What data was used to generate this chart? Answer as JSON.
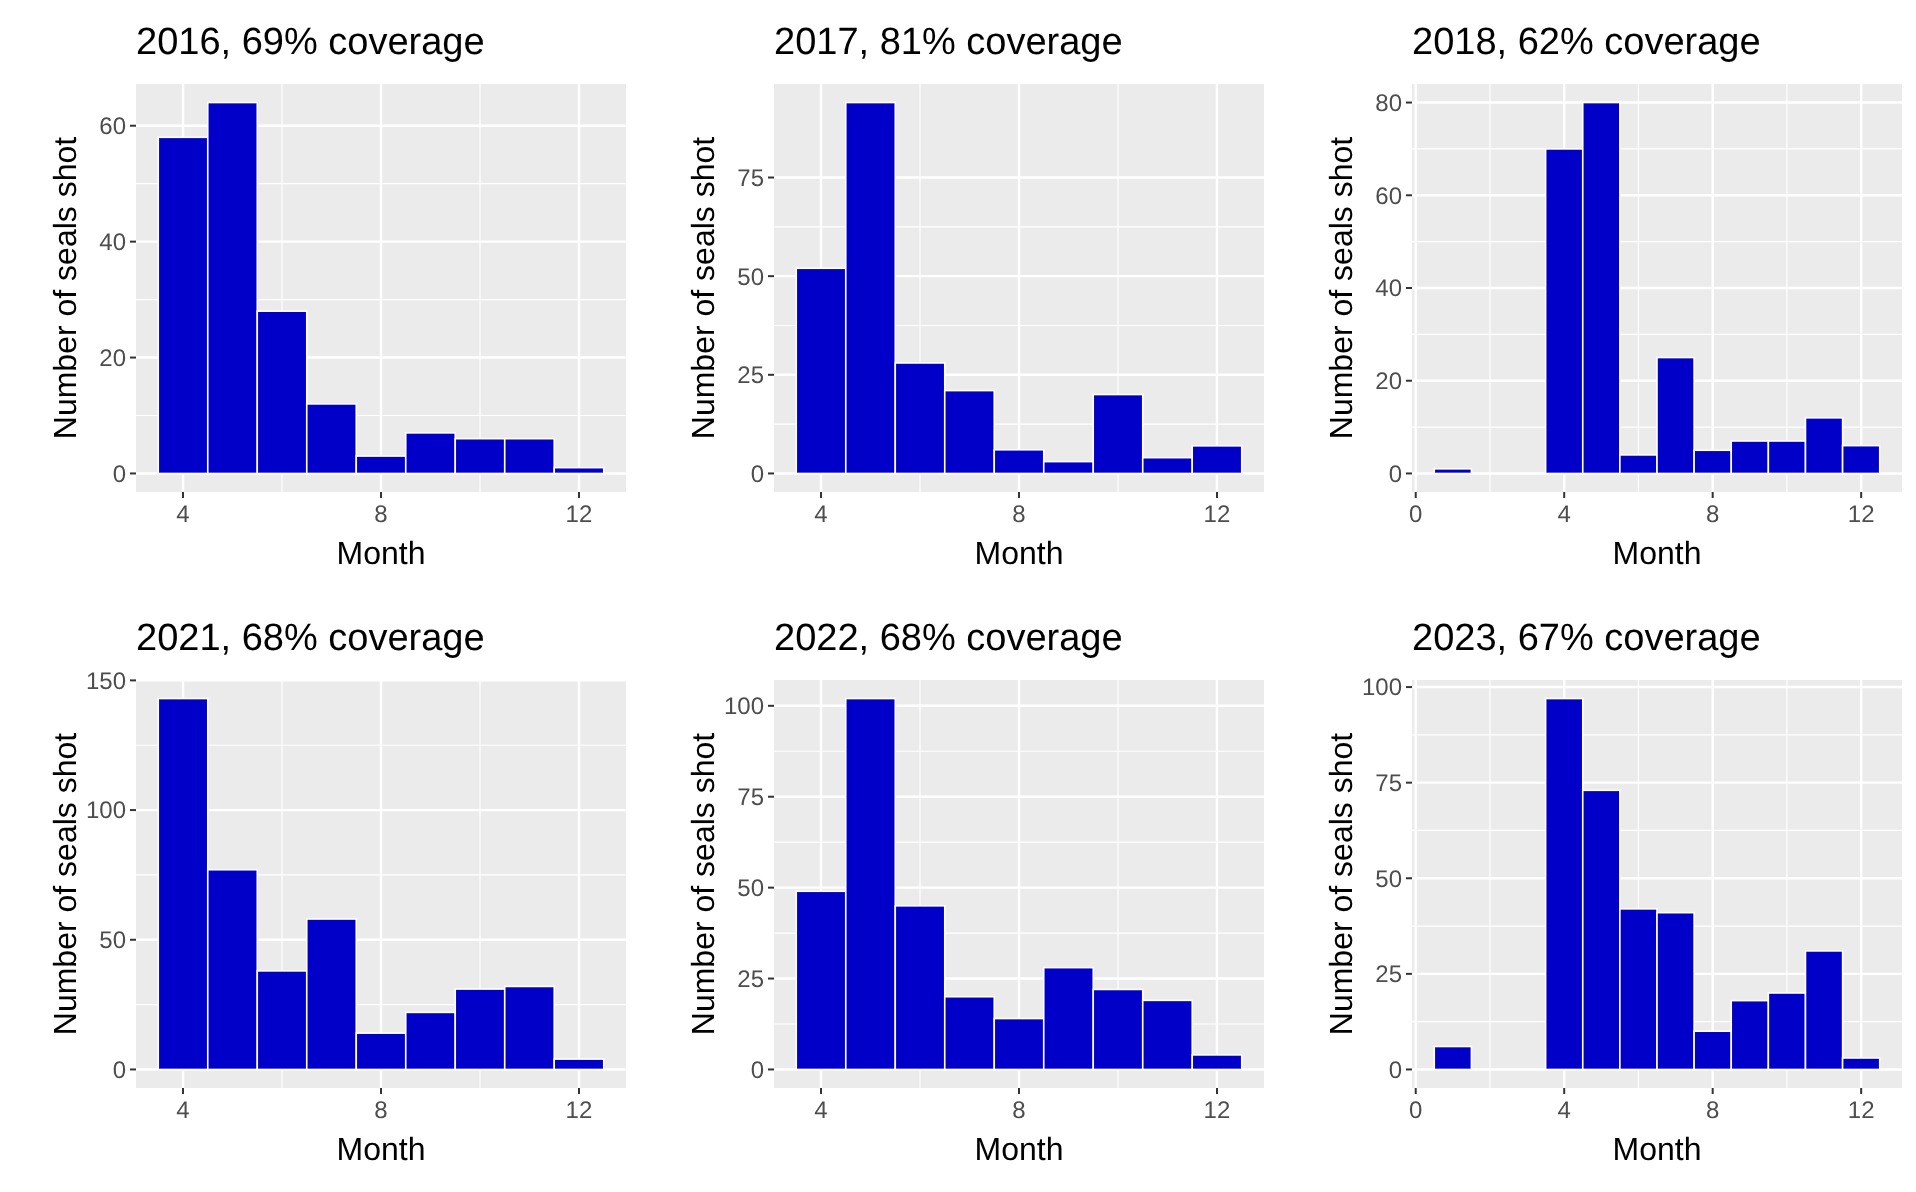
{
  "chart_data": [
    {
      "type": "histogram",
      "title": "2016, 69% coverage",
      "xlabel": "Month",
      "ylabel": "Number of seals shot",
      "color": "#0000c8",
      "grid": true,
      "bins": [
        3.5,
        4.5,
        5.5,
        6.5,
        7.5,
        8.5,
        9.5,
        10.5,
        11.5,
        12.5
      ],
      "values": [
        58,
        64,
        28,
        12,
        3,
        7,
        6,
        6,
        1
      ],
      "xlim": [
        3.05,
        12.95
      ],
      "xticks": [
        4,
        8,
        12
      ],
      "ylim": [
        -3.2,
        67.2
      ],
      "yticks": [
        0,
        20,
        40,
        60
      ]
    },
    {
      "type": "histogram",
      "title": "2017, 81% coverage",
      "xlabel": "Month",
      "ylabel": "Number of seals shot",
      "color": "#0000c8",
      "grid": true,
      "bins": [
        3.5,
        4.5,
        5.5,
        6.5,
        7.5,
        8.5,
        9.5,
        10.5,
        11.5,
        12.5
      ],
      "values": [
        52,
        94,
        28,
        21,
        6,
        3,
        20,
        4,
        7
      ],
      "xlim": [
        3.05,
        12.95
      ],
      "xticks": [
        4,
        8,
        12
      ],
      "ylim": [
        -4.7,
        98.7
      ],
      "yticks": [
        0,
        25,
        50,
        75
      ]
    },
    {
      "type": "histogram",
      "title": "2018, 62% coverage",
      "xlabel": "Month",
      "ylabel": "Number of seals shot",
      "color": "#0000c8",
      "grid": true,
      "bins": [
        0.5,
        1.5,
        2.5,
        3.5,
        4.5,
        5.5,
        6.5,
        7.5,
        8.5,
        9.5,
        10.5,
        11.5,
        12.5
      ],
      "values": [
        1,
        0,
        0,
        70,
        80,
        4,
        25,
        5,
        7,
        7,
        12,
        6
      ],
      "xlim": [
        -0.1,
        13.1
      ],
      "xticks": [
        0,
        4,
        8,
        12
      ],
      "ylim": [
        -4,
        84
      ],
      "yticks": [
        0,
        20,
        40,
        60,
        80
      ]
    },
    {
      "type": "histogram",
      "title": "2021, 68% coverage",
      "xlabel": "Month",
      "ylabel": "Number of seals shot",
      "color": "#0000c8",
      "grid": true,
      "bins": [
        3.5,
        4.5,
        5.5,
        6.5,
        7.5,
        8.5,
        9.5,
        10.5,
        11.5,
        12.5
      ],
      "values": [
        143,
        77,
        38,
        58,
        14,
        22,
        31,
        32,
        4
      ],
      "xlim": [
        3.05,
        12.95
      ],
      "xticks": [
        4,
        8,
        12
      ],
      "ylim": [
        -7.15,
        150.15
      ],
      "yticks": [
        0,
        50,
        100,
        150
      ]
    },
    {
      "type": "histogram",
      "title": "2022, 68% coverage",
      "xlabel": "Month",
      "ylabel": "Number of seals shot",
      "color": "#0000c8",
      "grid": true,
      "bins": [
        3.5,
        4.5,
        5.5,
        6.5,
        7.5,
        8.5,
        9.5,
        10.5,
        11.5,
        12.5
      ],
      "values": [
        49,
        102,
        45,
        20,
        14,
        28,
        22,
        19,
        4
      ],
      "xlim": [
        3.05,
        12.95
      ],
      "xticks": [
        4,
        8,
        12
      ],
      "ylim": [
        -5.1,
        107.1
      ],
      "yticks": [
        0,
        25,
        50,
        75,
        100
      ]
    },
    {
      "type": "histogram",
      "title": "2023, 67% coverage",
      "xlabel": "Month",
      "ylabel": "Number of seals shot",
      "color": "#0000c8",
      "grid": true,
      "bins": [
        0.5,
        1.5,
        2.5,
        3.5,
        4.5,
        5.5,
        6.5,
        7.5,
        8.5,
        9.5,
        10.5,
        11.5,
        12.5
      ],
      "values": [
        6,
        0,
        0,
        97,
        73,
        42,
        41,
        10,
        18,
        20,
        31,
        3
      ],
      "xlim": [
        -0.1,
        13.1
      ],
      "xticks": [
        0,
        4,
        8,
        12
      ],
      "ylim": [
        -4.85,
        101.85
      ],
      "yticks": [
        0,
        25,
        50,
        75,
        100
      ]
    }
  ]
}
